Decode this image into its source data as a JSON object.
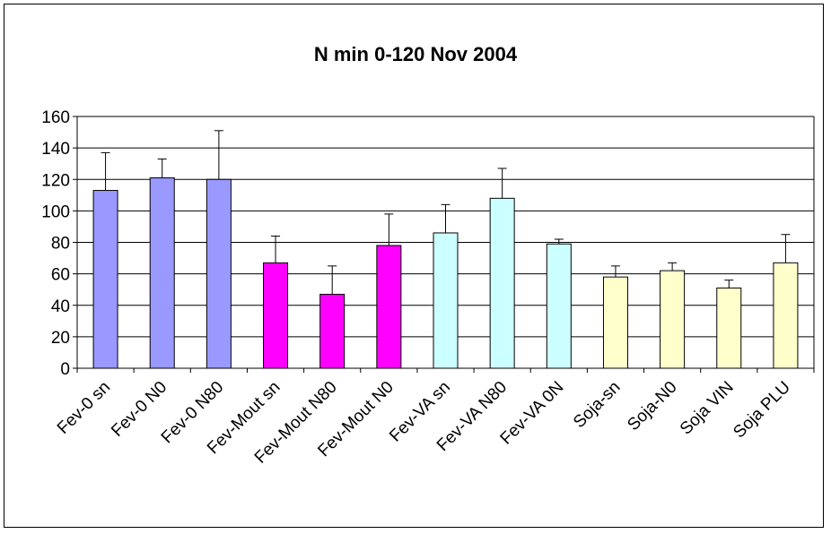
{
  "chart_data": {
    "type": "bar",
    "title": "N min 0-120 Nov 2004",
    "xlabel": "",
    "ylabel": "",
    "ylim": [
      0,
      160
    ],
    "yticks": [
      0,
      20,
      40,
      60,
      80,
      100,
      120,
      140,
      160
    ],
    "grid": true,
    "categories": [
      "Fev-0 sn",
      "Fev-0 N0",
      "Fev-0 N80",
      "Fev-Mout sn",
      "Fev-Mout N80",
      "Fev-Mout N0",
      "Fev-VA sn",
      "Fev-VA N80",
      "Fev-VA 0N",
      "Soja-sn",
      "Soja-N0",
      "Soja VIN",
      "Soja PLU"
    ],
    "values": [
      113,
      121,
      120,
      67,
      47,
      78,
      86,
      108,
      79,
      58,
      62,
      51,
      67
    ],
    "error_upper": [
      137,
      133,
      151,
      84,
      65,
      98,
      104,
      127,
      82,
      65,
      67,
      56,
      85
    ],
    "colors": [
      "#9999ff",
      "#9999ff",
      "#9999ff",
      "#ff00ff",
      "#ff00ff",
      "#ff00ff",
      "#ccffff",
      "#ccffff",
      "#ccffff",
      "#ffffcc",
      "#ffffcc",
      "#ffffcc",
      "#ffffcc"
    ]
  }
}
